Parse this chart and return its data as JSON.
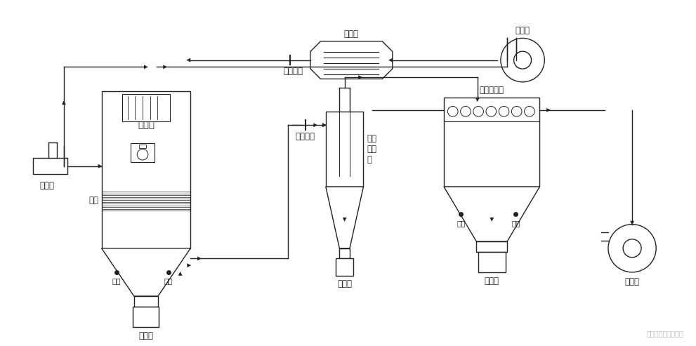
{
  "bg_color": "#ffffff",
  "line_color": "#222222",
  "line_width": 1.0,
  "watermark": "上海乔枫喷雾干燥机",
  "labels": {
    "wulhua_ta": "雾化塔",
    "qi_sao": "气扫",
    "zhen_da1": "振打",
    "zhen_da2": "振打",
    "shou_liao_ping1": "收料瓶",
    "shou_liao_ping2": "收料瓶",
    "shou_liao_ping3": "收料瓶",
    "jin_feng_wendu": "进风温度",
    "chu_feng_wendu": "出风温度",
    "jia_re_qi": "加热器",
    "song_feng_ji": "送风机",
    "xuan_feng_fili_qi": "旋风\n分离\n器",
    "bu_dai_chu_chen_qi": "布袋除尘器",
    "zhen_da3": "振打",
    "zhen_da4": "振打",
    "yin_feng_ji": "引风机",
    "ru_dong_beng": "蠕动泵"
  },
  "font_size": 8.5,
  "fig_width": 9.91,
  "fig_height": 4.93
}
